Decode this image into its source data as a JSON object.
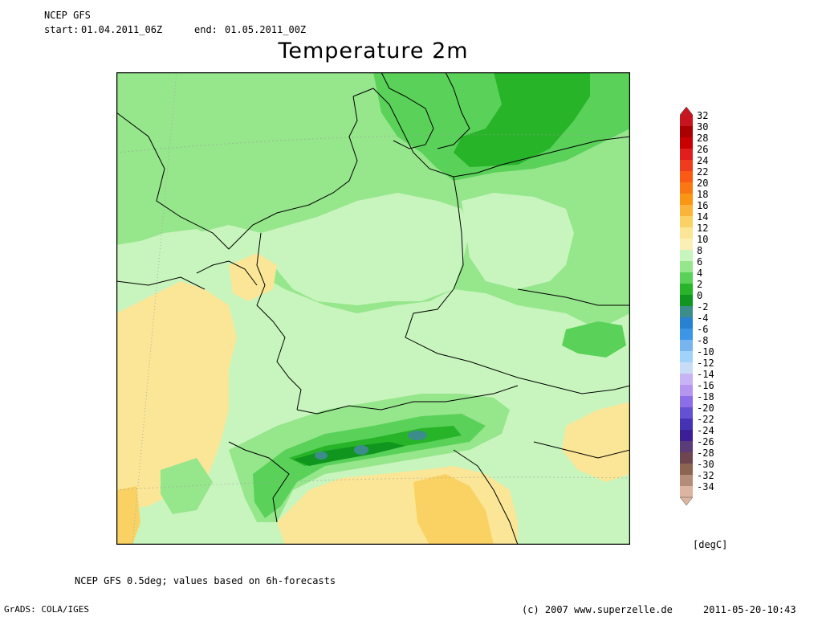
{
  "header": {
    "model": "NCEP GFS",
    "start_label": "start:",
    "start_value": "01.04.2011_06Z",
    "end_label": "end:",
    "end_value": "01.05.2011_00Z"
  },
  "title": "Temperature 2m",
  "legend": {
    "unit": "[degC]",
    "labels": [
      "32",
      "30",
      "28",
      "26",
      "24",
      "22",
      "20",
      "18",
      "16",
      "14",
      "12",
      "10",
      "8",
      "6",
      "4",
      "2",
      "0",
      "-2",
      "-4",
      "-6",
      "-8",
      "-10",
      "-12",
      "-14",
      "-16",
      "-18",
      "-20",
      "-22",
      "-24",
      "-26",
      "-28",
      "-30",
      "-32",
      "-34"
    ],
    "colors": [
      "#c8141e",
      "#aa0000",
      "#c80000",
      "#e11e1e",
      "#f03c1e",
      "#fa5a14",
      "#fa7814",
      "#fa9614",
      "#fab43c",
      "#fad264",
      "#fae696",
      "#faf0b4",
      "#c8f5be",
      "#96e68c",
      "#5ad25a",
      "#28b428",
      "#10961e",
      "#3c8c8c",
      "#2882d2",
      "#3c96e6",
      "#78b4f0",
      "#a0d2fa",
      "#c8dcf5",
      "#c8b4f5",
      "#b496f0",
      "#8c6ee6",
      "#6450d2",
      "#4632b4",
      "#3c1e96",
      "#5a3c78",
      "#6e4650",
      "#8c6450",
      "#b48c78",
      "#dcb4a0"
    ]
  },
  "footer": {
    "source": "NCEP GFS 0.5deg; values based on 6h-forecasts",
    "grads": "GrADS: COLA/IGES",
    "copyright": "(c) 2007 www.superzelle.de",
    "timestamp": "2011-05-20-10:43"
  }
}
